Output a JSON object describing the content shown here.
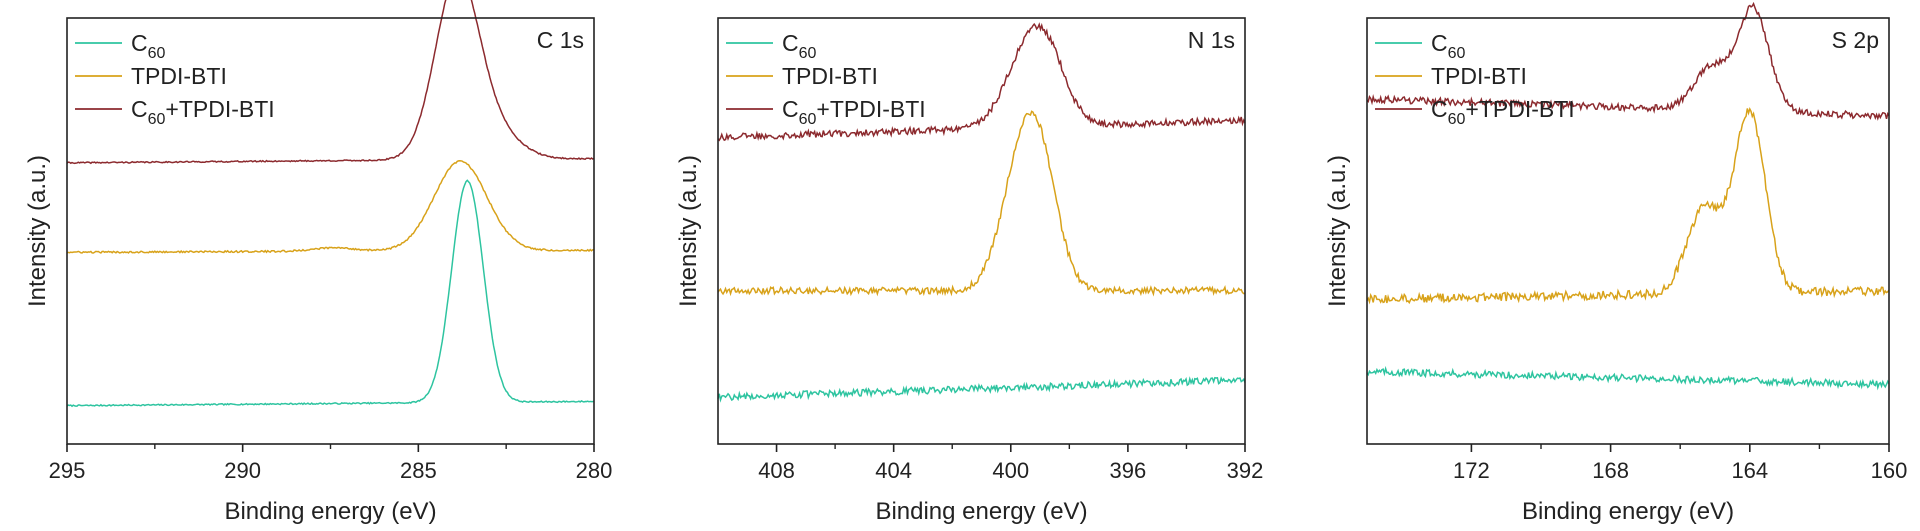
{
  "colors": {
    "c60": "#2ec4a0",
    "tpdi": "#d8a21a",
    "mix": "#8c2a2e",
    "axis": "#222222"
  },
  "legend": {
    "items": [
      {
        "key": "c60",
        "base": "C",
        "sub": "60",
        "rest": ""
      },
      {
        "key": "tpdi",
        "base": "TPDI-BTI",
        "sub": "",
        "rest": ""
      },
      {
        "key": "mix",
        "base": "C",
        "sub": "60",
        "rest": "+TPDI-BTI"
      }
    ]
  },
  "chart_data": [
    {
      "type": "line",
      "panel_label": "C 1s",
      "xlabel": "Binding energy (eV)",
      "ylabel": "Intensity (a.u.)",
      "xlim": [
        295,
        280
      ],
      "ylim": [
        0,
        1
      ],
      "xticks": [
        295,
        290,
        285,
        280
      ],
      "xtick_labels": [
        "295",
        "290",
        "285",
        "280"
      ],
      "series": [
        {
          "name": "C60",
          "key": "c60",
          "baseline": 0.09,
          "slope": 0.01,
          "noise": 0.0015,
          "peaks": [
            {
              "center": 283.6,
              "height": 0.52,
              "width": 0.45
            }
          ]
        },
        {
          "name": "TPDI-BTI",
          "key": "tpdi",
          "baseline": 0.45,
          "slope": 0.005,
          "noise": 0.002,
          "peaks": [
            {
              "center": 283.8,
              "height": 0.21,
              "width": 0.75
            },
            {
              "center": 287.4,
              "height": 0.008,
              "width": 0.6
            }
          ]
        },
        {
          "name": "C60+TPDI-BTI",
          "key": "mix",
          "baseline": 0.66,
          "slope": 0.01,
          "noise": 0.0015,
          "peaks": [
            {
              "center": 283.9,
              "height": 0.42,
              "width": 0.62
            },
            {
              "center": 282.8,
              "height": 0.06,
              "width": 0.7
            }
          ]
        }
      ]
    },
    {
      "type": "line",
      "panel_label": "N 1s",
      "xlabel": "Binding energy (eV)",
      "ylabel": "Intensity (a.u.)",
      "xlim": [
        410,
        392
      ],
      "ylim": [
        0,
        1
      ],
      "xticks": [
        408,
        404,
        400,
        396,
        392
      ],
      "xtick_labels": [
        "408",
        "404",
        "400",
        "396",
        "392"
      ],
      "series": [
        {
          "name": "C60",
          "key": "c60",
          "baseline": 0.11,
          "slope": 0.04,
          "noise": 0.008,
          "peaks": []
        },
        {
          "name": "TPDI-BTI",
          "key": "tpdi",
          "baseline": 0.36,
          "slope": 0.0,
          "noise": 0.008,
          "peaks": [
            {
              "center": 399.6,
              "height": 0.3,
              "width": 0.7
            },
            {
              "center": 398.9,
              "height": 0.18,
              "width": 0.6
            }
          ]
        },
        {
          "name": "C60+TPDI-BTI",
          "key": "mix",
          "baseline": 0.72,
          "slope": 0.04,
          "noise": 0.008,
          "peaks": [
            {
              "center": 399.3,
              "height": 0.2,
              "width": 0.8
            },
            {
              "center": 398.6,
              "height": 0.06,
              "width": 0.6
            }
          ]
        }
      ]
    },
    {
      "type": "line",
      "panel_label": "S 2p",
      "xlabel": "Binding energy (eV)",
      "ylabel": "Intensity (a.u.)",
      "xlim": [
        175,
        160
      ],
      "ylim": [
        0,
        1
      ],
      "xticks": [
        172,
        168,
        164,
        160
      ],
      "xtick_labels": [
        "172",
        "168",
        "164",
        "160"
      ],
      "series": [
        {
          "name": "C60",
          "key": "c60",
          "baseline": 0.17,
          "slope": -0.03,
          "noise": 0.008,
          "peaks": []
        },
        {
          "name": "TPDI-BTI",
          "key": "tpdi",
          "baseline": 0.34,
          "slope": 0.02,
          "noise": 0.01,
          "peaks": [
            {
              "center": 164.0,
              "height": 0.42,
              "width": 0.45
            },
            {
              "center": 165.3,
              "height": 0.2,
              "width": 0.5
            }
          ]
        },
        {
          "name": "C60+TPDI-BTI",
          "key": "mix",
          "baseline": 0.81,
          "slope": -0.04,
          "noise": 0.008,
          "peaks": [
            {
              "center": 163.9,
              "height": 0.24,
              "width": 0.45
            },
            {
              "center": 165.1,
              "height": 0.1,
              "width": 0.5
            }
          ]
        }
      ]
    }
  ]
}
